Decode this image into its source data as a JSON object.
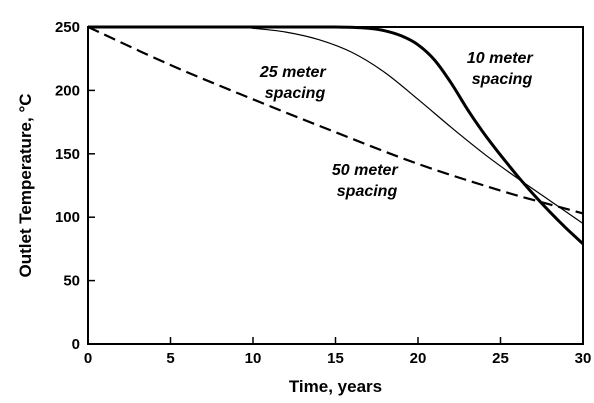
{
  "chart_data": {
    "type": "line",
    "xlabel": "Time, years",
    "ylabel": "Outlet Temperature, °C",
    "xlim": [
      0,
      30
    ],
    "ylim": [
      0,
      250
    ],
    "xticks": [
      0,
      5,
      10,
      15,
      20,
      25,
      30
    ],
    "yticks": [
      0,
      50,
      100,
      150,
      200,
      250
    ],
    "grid": false,
    "legend": "none",
    "series": [
      {
        "name": "10 meter spacing",
        "style": "solid-thick",
        "x": [
          0,
          5,
          10,
          15,
          17,
          18,
          19,
          20,
          21,
          22,
          23,
          24,
          25,
          26,
          27,
          28,
          29,
          30
        ],
        "y": [
          250,
          250,
          250,
          250,
          249,
          247,
          243,
          236,
          224,
          206,
          185,
          166,
          149,
          133,
          118,
          104,
          91,
          79
        ]
      },
      {
        "name": "25 meter spacing",
        "style": "solid-thin",
        "x": [
          0,
          5,
          9,
          10,
          12,
          14,
          16,
          18,
          20,
          22,
          24,
          26,
          28,
          30
        ],
        "y": [
          250,
          250,
          250,
          249,
          246,
          240,
          230,
          214,
          193,
          171,
          150,
          131,
          113,
          95
        ]
      },
      {
        "name": "50 meter spacing",
        "style": "dashed",
        "x": [
          0,
          5,
          10,
          15,
          20,
          25,
          28,
          30
        ],
        "y": [
          250,
          220,
          193,
          167,
          142,
          121,
          110,
          103
        ]
      }
    ],
    "annotations": [
      {
        "line1": "10 meter",
        "line2": "spacing"
      },
      {
        "line1": "25 meter",
        "line2": "spacing"
      },
      {
        "line1": "50 meter",
        "line2": "spacing"
      }
    ]
  }
}
